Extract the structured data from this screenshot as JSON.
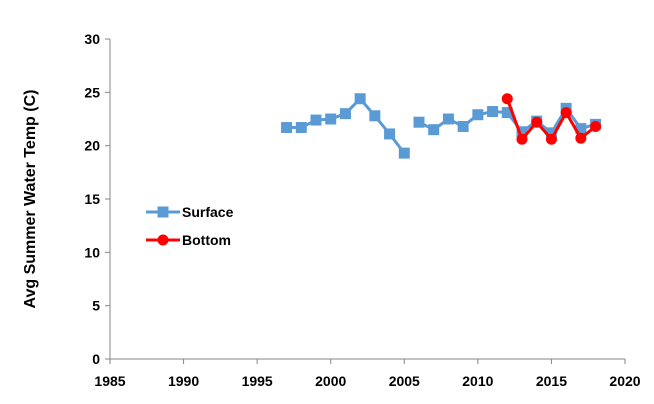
{
  "chart_data": {
    "type": "line",
    "title": "",
    "xlabel": "",
    "ylabel": "Avg Summer Water Temp (C)",
    "xlim": [
      1985,
      2020
    ],
    "ylim": [
      0,
      30
    ],
    "xticks": [
      1985,
      1990,
      1995,
      2000,
      2005,
      2010,
      2015,
      2020
    ],
    "yticks": [
      0,
      5,
      10,
      15,
      20,
      25,
      30
    ],
    "grid": false,
    "legend_position": "left-middle",
    "series": [
      {
        "name": "Surface",
        "color": "#5b9bd5",
        "marker": "square",
        "segments": [
          [
            [
              1997,
              21.7
            ],
            [
              1998,
              21.7
            ],
            [
              1999,
              22.4
            ],
            [
              2000,
              22.5
            ],
            [
              2001,
              23.0
            ],
            [
              2002,
              24.4
            ],
            [
              2003,
              22.8
            ],
            [
              2004,
              21.1
            ],
            [
              2005,
              19.3
            ]
          ],
          [
            [
              2006,
              22.2
            ],
            [
              2007,
              21.5
            ],
            [
              2008,
              22.5
            ],
            [
              2009,
              21.8
            ],
            [
              2010,
              22.9
            ],
            [
              2011,
              23.2
            ],
            [
              2012,
              23.1
            ],
            [
              2013,
              21.3
            ],
            [
              2014,
              22.3
            ],
            [
              2015,
              21.2
            ],
            [
              2016,
              23.5
            ],
            [
              2017,
              21.6
            ],
            [
              2018,
              22.0
            ]
          ]
        ]
      },
      {
        "name": "Bottom",
        "color": "#ff0000",
        "marker": "circle",
        "segments": [
          [
            [
              2012,
              24.4
            ],
            [
              2013,
              20.6
            ],
            [
              2014,
              22.2
            ],
            [
              2015,
              20.6
            ],
            [
              2016,
              23.1
            ],
            [
              2017,
              20.7
            ],
            [
              2018,
              21.8
            ]
          ]
        ]
      }
    ]
  }
}
